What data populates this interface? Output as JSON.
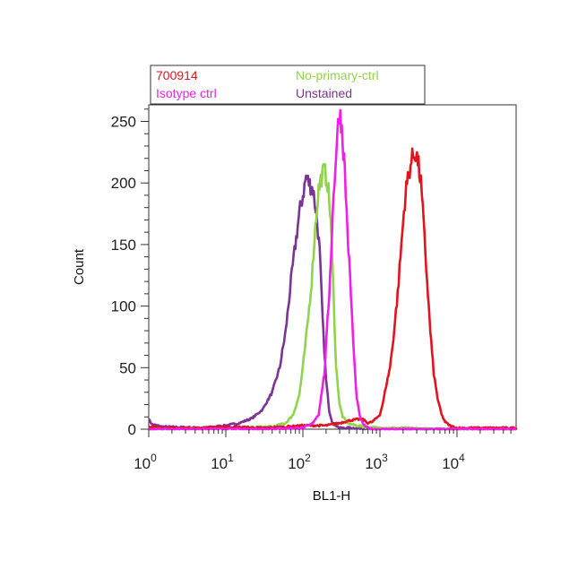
{
  "chart_data": {
    "type": "line",
    "title": "",
    "xlabel": "BL1-H",
    "ylabel": "Count",
    "x_scale": "log",
    "xlim": [
      1,
      60000
    ],
    "ylim": [
      0,
      262
    ],
    "x_ticks": [
      {
        "value": 1,
        "base": "10",
        "exp": "0"
      },
      {
        "value": 10,
        "base": "10",
        "exp": "1"
      },
      {
        "value": 100,
        "base": "10",
        "exp": "2"
      },
      {
        "value": 1000,
        "base": "10",
        "exp": "3"
      },
      {
        "value": 10000,
        "base": "10",
        "exp": "4"
      }
    ],
    "y_ticks": [
      0,
      50,
      100,
      150,
      200,
      250
    ],
    "grid": false,
    "legend_position": "top",
    "series": [
      {
        "name": "700914",
        "color": "#e0141e",
        "x": [
          1,
          2,
          5,
          10,
          30,
          60,
          100,
          200,
          300,
          400,
          500,
          600,
          700,
          800,
          900,
          1000,
          1100,
          1200,
          1350,
          1500,
          1700,
          1900,
          2100,
          2300,
          2500,
          2700,
          2900,
          3100,
          3400,
          3700,
          4100,
          4500,
          5000,
          5600,
          6300,
          7000,
          8000,
          10000,
          20000,
          60000
        ],
        "y": [
          2,
          1,
          1,
          2,
          1,
          2,
          3,
          3,
          5,
          7,
          8,
          8,
          5,
          6,
          9,
          12,
          22,
          35,
          50,
          75,
          110,
          150,
          185,
          205,
          215,
          222,
          225,
          218,
          200,
          165,
          120,
          80,
          45,
          25,
          12,
          6,
          3,
          1,
          1,
          1
        ]
      },
      {
        "name": "No-primary-ctrl",
        "color": "#8fd44b",
        "x": [
          1,
          10,
          40,
          60,
          75,
          90,
          100,
          115,
          130,
          145,
          160,
          175,
          190,
          210,
          230,
          250,
          270,
          300,
          330,
          370,
          420,
          500,
          600,
          1000,
          2000,
          5000,
          60000
        ],
        "y": [
          0,
          1,
          2,
          5,
          12,
          28,
          50,
          85,
          120,
          165,
          195,
          205,
          210,
          200,
          170,
          110,
          50,
          20,
          10,
          6,
          4,
          3,
          2,
          1,
          1,
          0,
          0
        ]
      },
      {
        "name": "Isotype ctrl",
        "color": "#f01ee6",
        "x": [
          1,
          20,
          100,
          130,
          160,
          190,
          220,
          250,
          280,
          300,
          320,
          350,
          380,
          420,
          460,
          500,
          560,
          630,
          700,
          800,
          1000,
          60000
        ],
        "y": [
          0,
          0,
          1,
          4,
          12,
          45,
          110,
          190,
          240,
          258,
          245,
          210,
          160,
          110,
          60,
          25,
          8,
          3,
          1,
          0,
          0,
          0
        ]
      },
      {
        "name": "Unstained",
        "color": "#7b3494",
        "x": [
          1,
          1.1,
          1.5,
          5,
          10,
          15,
          22,
          30,
          40,
          50,
          60,
          70,
          80,
          90,
          100,
          110,
          120,
          135,
          150,
          165,
          180,
          200,
          220,
          240,
          270,
          300,
          500,
          1000,
          60000
        ],
        "y": [
          8,
          4,
          2,
          1,
          3,
          5,
          9,
          16,
          30,
          50,
          80,
          120,
          150,
          175,
          190,
          205,
          200,
          195,
          175,
          145,
          90,
          40,
          15,
          6,
          3,
          1,
          1,
          0,
          0
        ]
      }
    ]
  },
  "legend_layout": [
    [
      "700914",
      "No-primary-ctrl"
    ],
    [
      "Isotype ctrl",
      "Unstained"
    ]
  ]
}
